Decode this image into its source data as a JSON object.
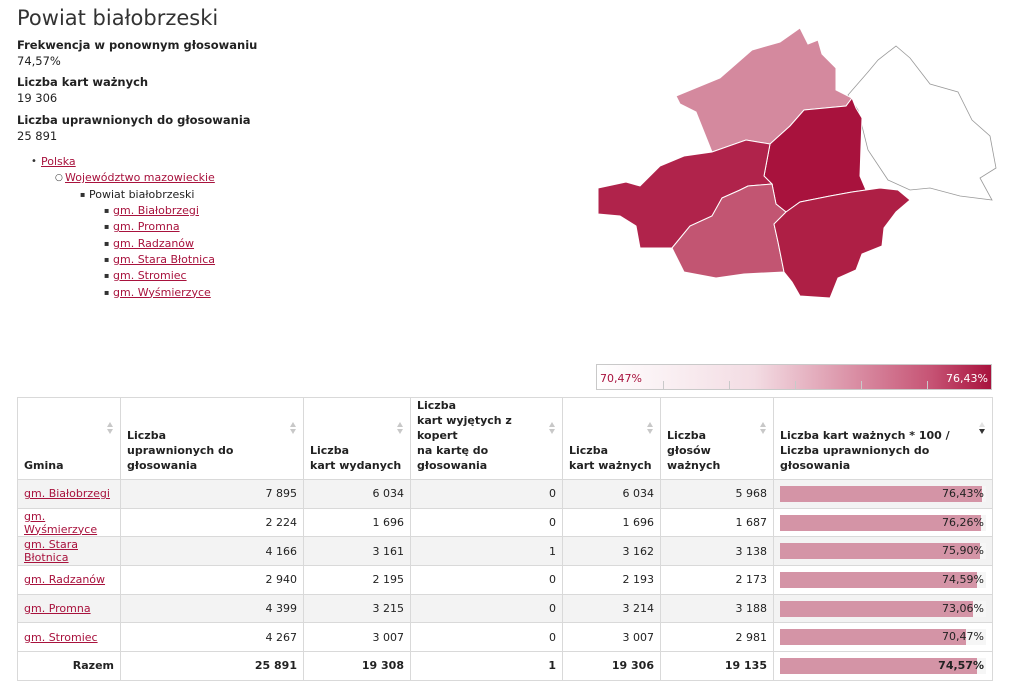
{
  "page_title": "Powiat białobrzeski",
  "stats": [
    {
      "label": "Frekwencja w ponownym głosowaniu",
      "value": "74,57%"
    },
    {
      "label": "Liczba kart ważnych",
      "value": "19 306"
    },
    {
      "label": "Liczba uprawnionych do głosowania",
      "value": "25 891"
    }
  ],
  "breadcrumb": {
    "country": "Polska",
    "voivodeship": "Województwo mazowieckie",
    "current": "Powiat białobrzeski",
    "gminas": [
      "gm. Białobrzegi",
      "gm. Promna",
      "gm. Radzanów",
      "gm. Stara Błotnica",
      "gm. Stromiec",
      "gm. Wyśmierzyce"
    ]
  },
  "legend": {
    "min": "70,47%",
    "max": "76,43%"
  },
  "colors": {
    "accent": "#a8123d",
    "bar": "#d494a6",
    "row_alt": "#f3f3f3"
  },
  "table": {
    "headers": [
      [
        "Gmina"
      ],
      [
        "Liczba",
        "uprawnionych do głosowania"
      ],
      [
        "Liczba",
        "kart wydanych"
      ],
      [
        "Liczba",
        "kart wyjętych z kopert",
        "na kartę do głosowania"
      ],
      [
        "Liczba",
        "kart ważnych"
      ],
      [
        "Liczba",
        "głosów ważnych"
      ],
      [
        "Liczba kart ważnych * 100 /",
        "Liczba uprawnionych do głosowania"
      ]
    ],
    "rows": [
      {
        "name": "gm. Białobrzegi",
        "uprawnieni": "7 895",
        "wydane": "6 034",
        "wyjete": "0",
        "wazne": "6 034",
        "glosy": "5 968",
        "pct": "76,43%",
        "frac": 0.7643
      },
      {
        "name": "gm. Wyśmierzyce",
        "uprawnieni": "2 224",
        "wydane": "1 696",
        "wyjete": "0",
        "wazne": "1 696",
        "glosy": "1 687",
        "pct": "76,26%",
        "frac": 0.7626
      },
      {
        "name": "gm. Stara Błotnica",
        "uprawnieni": "4 166",
        "wydane": "3 161",
        "wyjete": "1",
        "wazne": "3 162",
        "glosy": "3 138",
        "pct": "75,90%",
        "frac": 0.759
      },
      {
        "name": "gm. Radzanów",
        "uprawnieni": "2 940",
        "wydane": "2 195",
        "wyjete": "0",
        "wazne": "2 193",
        "glosy": "2 173",
        "pct": "74,59%",
        "frac": 0.7459
      },
      {
        "name": "gm. Promna",
        "uprawnieni": "4 399",
        "wydane": "3 215",
        "wyjete": "0",
        "wazne": "3 214",
        "glosy": "3 188",
        "pct": "73,06%",
        "frac": 0.7306
      },
      {
        "name": "gm. Stromiec",
        "uprawnieni": "4 267",
        "wydane": "3 007",
        "wyjete": "0",
        "wazne": "3 007",
        "glosy": "2 981",
        "pct": "70,47%",
        "frac": 0.7047
      }
    ],
    "total": {
      "name": "Razem",
      "uprawnieni": "25 891",
      "wydane": "19 308",
      "wyjete": "1",
      "wazne": "19 306",
      "glosy": "19 135",
      "pct": "74,57%",
      "frac": 0.7457
    }
  }
}
